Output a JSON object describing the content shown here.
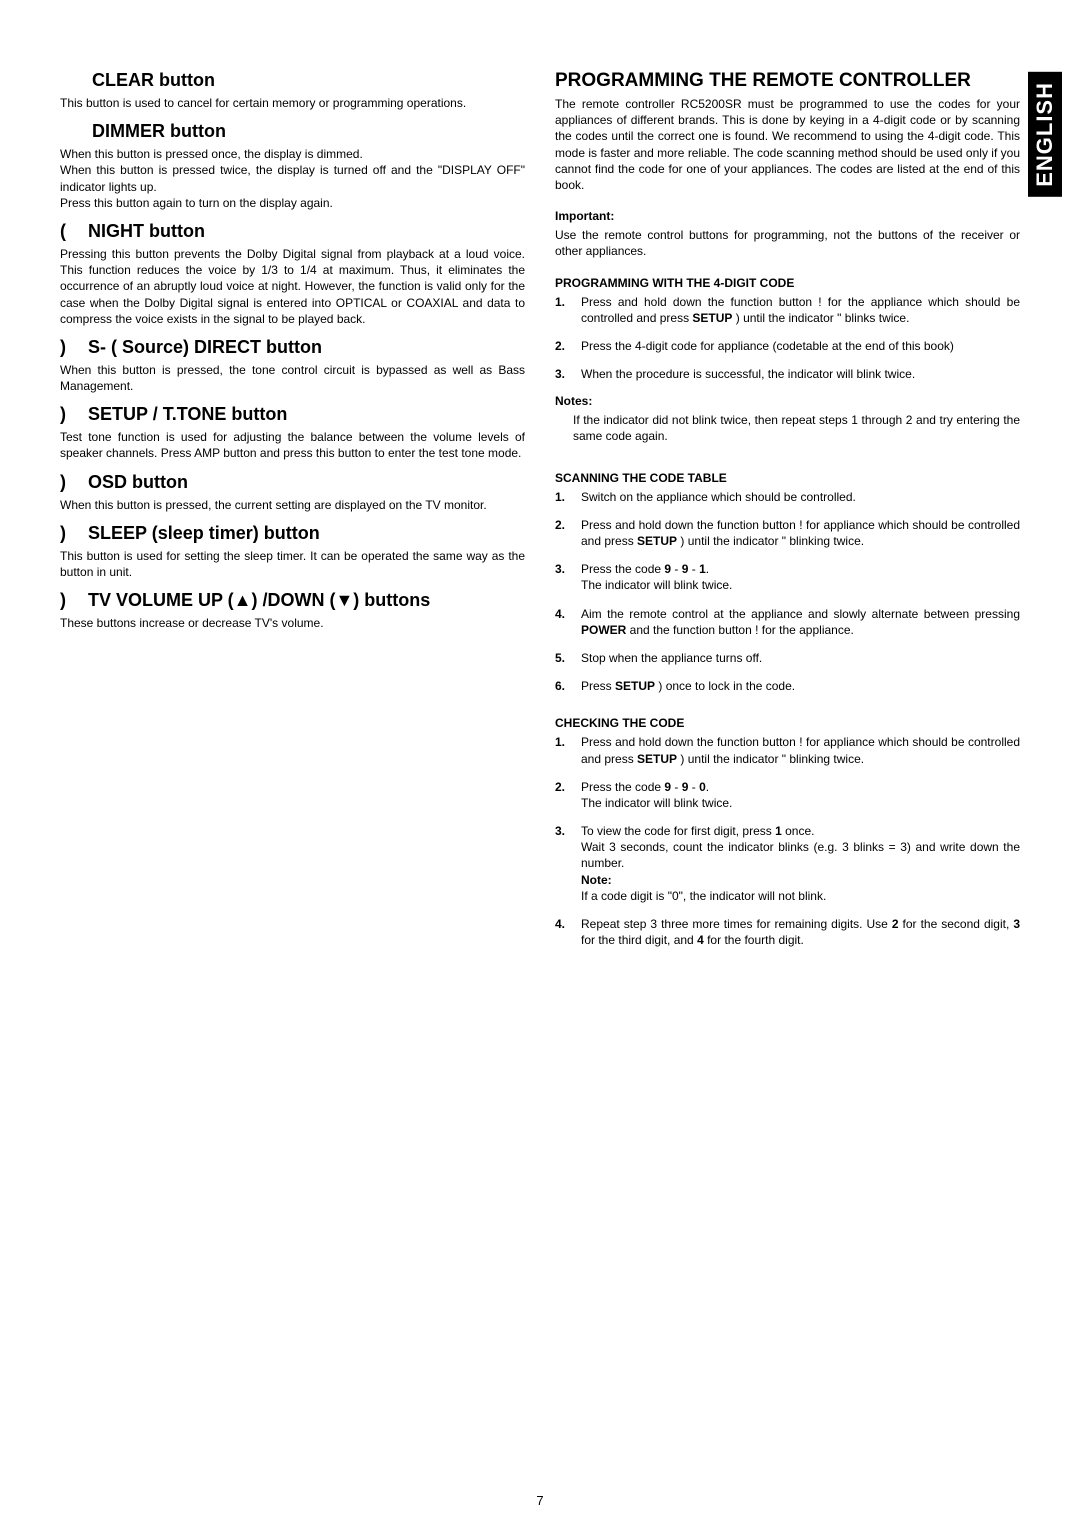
{
  "side_tab": "ENGLISH",
  "page_number": "7",
  "left": {
    "clear": {
      "title": "CLEAR button",
      "body": "This button is used to cancel for certain memory or programming operations."
    },
    "dimmer": {
      "title": "DIMMER button",
      "body": "When this button is pressed once, the display is dimmed.\nWhen this button is pressed twice, the display is turned off and the \"DISPLAY OFF\" indicator lights up.\nPress this button again to turn on the display again."
    },
    "night": {
      "prefix": "(",
      "title": "NIGHT button",
      "body": "Pressing this button prevents the Dolby Digital signal from playback at a loud voice. This function reduces the voice by 1/3 to 1/4 at maximum. Thus, it eliminates the occurrence of an abruptly loud voice at night. However, the function is valid only for the case when the  Dolby Digital signal is entered into OPTICAL or COAXIAL and data to compress the voice exists in the signal to be played back."
    },
    "sdirect": {
      "prefix": ")",
      "title": "S- ( Source) DIRECT button",
      "body": "When this button is pressed, the tone control circuit is bypassed as well as Bass Management."
    },
    "setup": {
      "prefix": ")",
      "title": "SETUP / T.TONE button",
      "body": "Test tone function is used for adjusting the balance between the volume levels of speaker channels. Press AMP button and press this button to enter the test tone mode."
    },
    "osd": {
      "prefix": ")",
      "title": "OSD button",
      "body": "When this button is pressed, the current setting are displayed on the TV monitor."
    },
    "sleep": {
      "prefix": ")",
      "title": "SLEEP (sleep timer) button",
      "body": "This button is used for setting the sleep timer.  It can be operated the same way as the button in unit."
    },
    "tvvol": {
      "prefix": ")",
      "title": "TV VOLUME UP (▲) /DOWN (▼) buttons",
      "body": "These buttons increase or decrease TV's volume."
    }
  },
  "right": {
    "programming": {
      "title": "PROGRAMMING THE REMOTE CONTROLLER",
      "body": "The remote controller RC5200SR must be programmed to use the codes for your  appliances of different brands.  This is done by keying in a 4-digit code or by scanning the codes until the correct one is found. We recommend to using the 4-digit code.  This mode is faster and more reliable.  The code scanning method should be used only if you cannot find the code for one of your appliances.  The codes are listed at the end of this book."
    },
    "important": {
      "label": "Important:",
      "body": "Use the remote control buttons for programming, not the buttons of the receiver or other appliances."
    },
    "prog4": {
      "heading": "PROGRAMMING WITH THE 4-DIGIT CODE",
      "items": [
        "Press and hold down the function button !    for the appliance which should be controlled and press <b>SETUP</b> )    until the indicator \"    blinks twice.",
        "Press the 4-digit code for appliance (codetable at the end of this book)",
        "When the procedure is successful, the indicator will blink twice."
      ]
    },
    "notes1": {
      "label": "Notes:",
      "body": "If the indicator did not blink twice, then repeat steps 1 through 2 and try entering the same code again."
    },
    "scanning": {
      "heading": "SCANNING THE CODE TABLE",
      "items": [
        "Switch on the appliance which should be controlled.",
        "Press and hold down the function button !    for appliance which should be controlled and press <b>SETUP</b> )     until the indicator \" blinking twice.",
        "Press the code <b>9</b> - <b>9</b> - <b>1</b>.<br>The indicator will blink twice.",
        "Aim the remote control at the appliance and slowly alternate between pressing <b>POWER</b>     and the function button !    for the appliance.",
        "Stop when the appliance turns off.",
        "Press <b>SETUP</b> )    once to lock in the code."
      ]
    },
    "checking": {
      "heading": "CHECKING THE CODE",
      "items": [
        "Press and hold down the function button !    for appliance which should be controlled and press <b>SETUP</b> )     until the indicator \" blinking twice.",
        "Press the code <b>9</b> - <b>9</b> - <b>0</b>.<br>The indicator will blink twice.",
        "To view the code for first digit, press <b>1</b> once.<br>Wait 3 seconds, count the indicator blinks (e.g. 3 blinks = 3) and write down the number.<br><b>Note:</b><br>If a code digit is \"0\", the indicator will not blink.",
        "Repeat step 3 three more times for remaining digits.  Use <b>2</b> for the second digit, <b>3</b> for the third digit, and <b>4</b> for the fourth digit."
      ]
    }
  }
}
